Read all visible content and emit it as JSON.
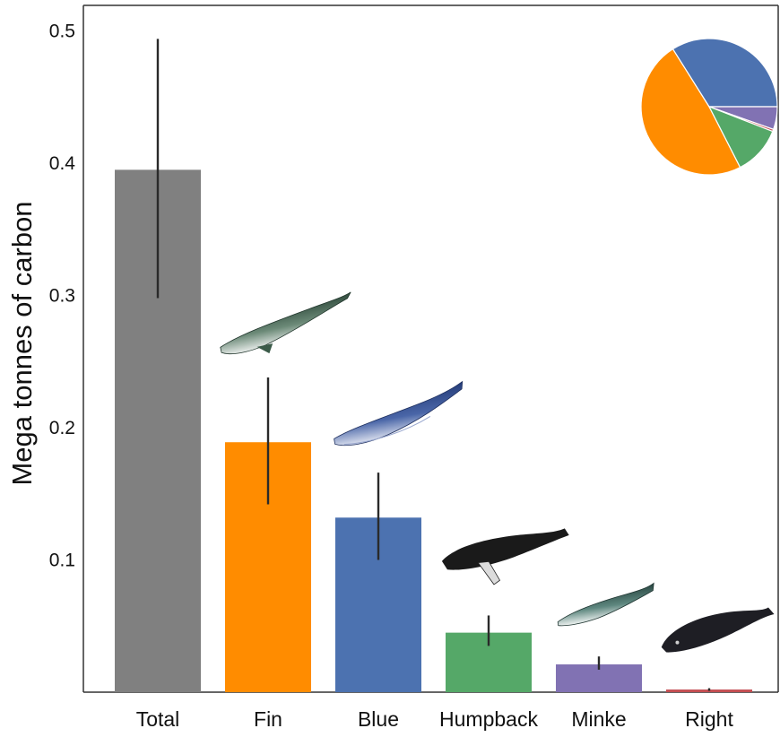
{
  "chart_data": [
    {
      "type": "bar",
      "ylabel": "Mega tonnes of carbon",
      "xlabel": "",
      "ylim": [
        0,
        0.52
      ],
      "yticks": [
        "0.1",
        "0.2",
        "0.3",
        "0.4",
        "0.5"
      ],
      "grid": false,
      "categories": [
        "Total",
        "Fin",
        "Blue",
        "Humpback",
        "Minke",
        "Right"
      ],
      "values": [
        0.395,
        0.189,
        0.132,
        0.045,
        0.021,
        0.002
      ],
      "error_low": [
        0.298,
        0.142,
        0.1,
        0.035,
        0.017,
        0.001
      ],
      "error_high": [
        0.494,
        0.238,
        0.166,
        0.058,
        0.027,
        0.003
      ],
      "colors": [
        "#808080",
        "#ff8c00",
        "#4c72b0",
        "#55a868",
        "#8172b3",
        "#c44e52"
      ],
      "illustrations": [
        "fin-whale",
        "blue-whale",
        "humpback-whale",
        "minke-whale",
        "right-whale"
      ]
    },
    {
      "type": "pie",
      "placement": "top-right inset",
      "slices": [
        {
          "category": "Fin",
          "value": 0.189,
          "color": "#ff8c00"
        },
        {
          "category": "Blue",
          "value": 0.132,
          "color": "#4c72b0"
        },
        {
          "category": "Humpback",
          "value": 0.045,
          "color": "#55a868"
        },
        {
          "category": "Minke",
          "value": 0.021,
          "color": "#8172b3"
        },
        {
          "category": "Right",
          "value": 0.002,
          "color": "#c44e52"
        }
      ]
    }
  ]
}
